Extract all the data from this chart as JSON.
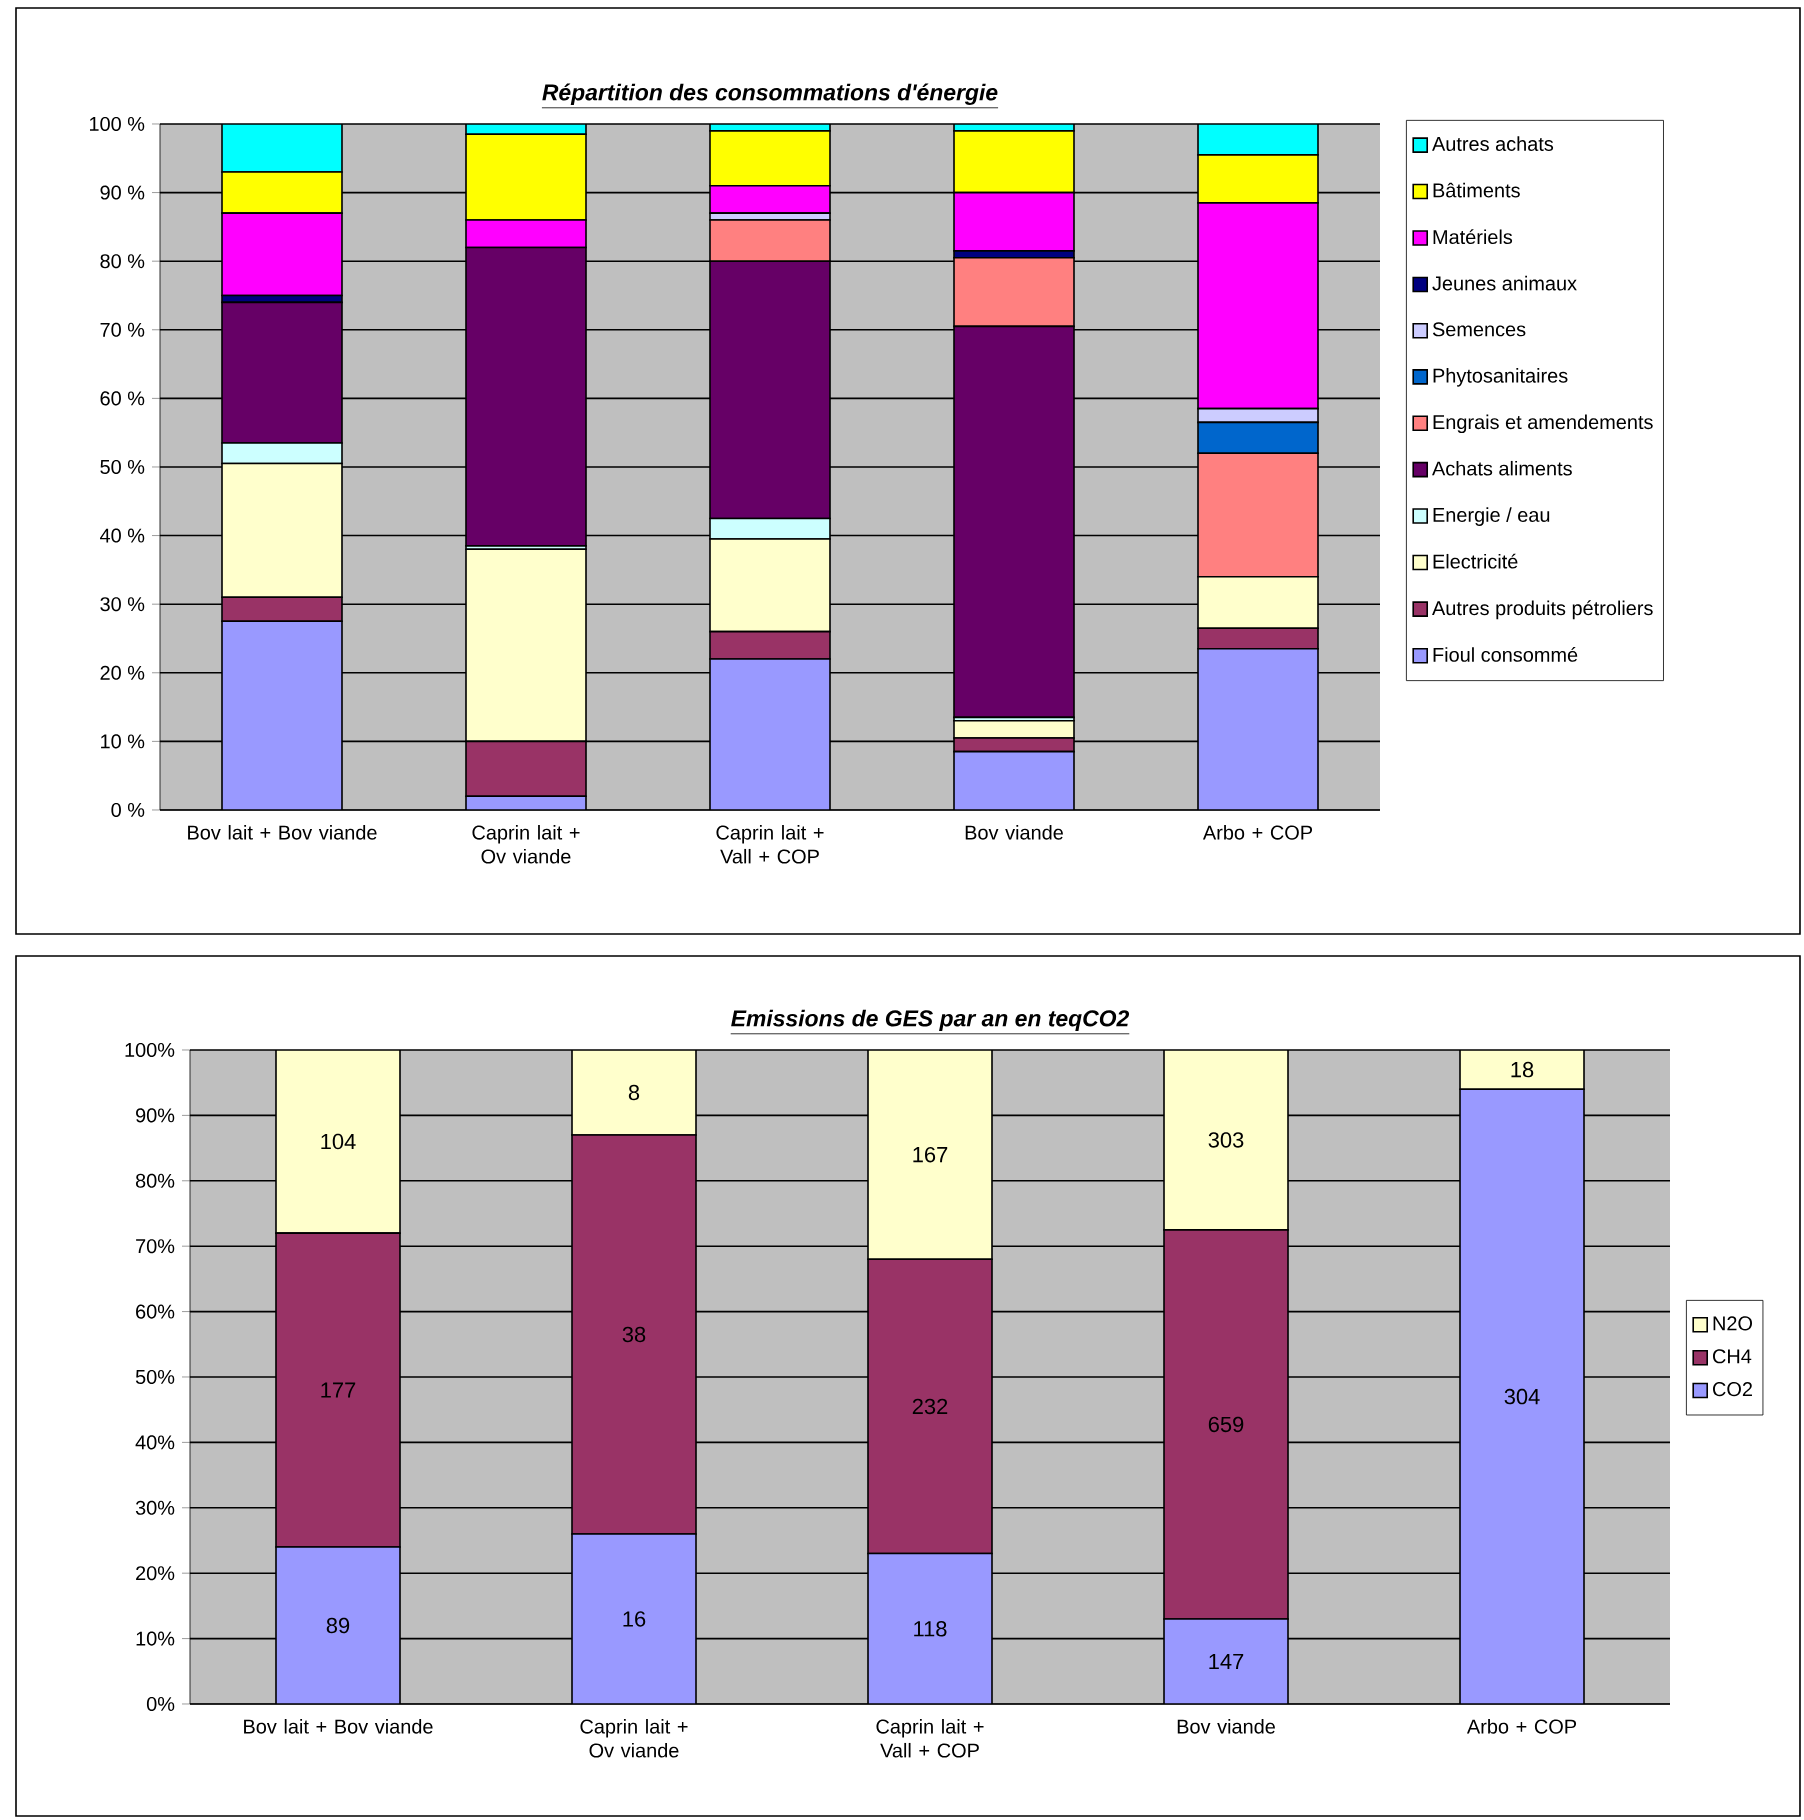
{
  "chart_data": [
    {
      "type": "bar",
      "stacked": true,
      "title": "Répartition des consommations d'énergie",
      "categories": [
        "Bov lait + Bov viande",
        "Caprin lait + Ov viande",
        "Caprin lait + Vall + COP",
        "Bov viande",
        "Arbo + COP"
      ],
      "series": [
        {
          "name": "Fioul consommé",
          "color": "#9999ff",
          "values": [
            27.5,
            2,
            22,
            8.5,
            23.5
          ]
        },
        {
          "name": "Autres produits pétroliers",
          "color": "#993366",
          "values": [
            3.5,
            8,
            4,
            2,
            3
          ]
        },
        {
          "name": "Electricité",
          "color": "#ffffcc",
          "values": [
            19.5,
            28,
            13.5,
            2.5,
            7.5
          ]
        },
        {
          "name": "Energie / eau",
          "color": "#ccffff",
          "values": [
            3,
            0.5,
            3,
            0.5,
            0
          ]
        },
        {
          "name": "Achats aliments",
          "color": "#660066",
          "values": [
            20.5,
            43.5,
            37.5,
            57,
            0
          ]
        },
        {
          "name": "Engrais et amendements",
          "color": "#ff8080",
          "values": [
            0,
            0,
            6,
            10,
            18
          ]
        },
        {
          "name": "Phytosanitaires",
          "color": "#0066cc",
          "values": [
            0,
            0,
            0,
            0,
            4.5
          ]
        },
        {
          "name": "Semences",
          "color": "#ccccff",
          "values": [
            0,
            0,
            1,
            0,
            2
          ]
        },
        {
          "name": "Jeunes animaux",
          "color": "#000080",
          "values": [
            1,
            0,
            0,
            1,
            0
          ]
        },
        {
          "name": "Matériels",
          "color": "#ff00ff",
          "values": [
            12,
            4,
            4,
            8.5,
            30
          ]
        },
        {
          "name": "Bâtiments",
          "color": "#ffff00",
          "values": [
            6,
            12.5,
            8,
            9,
            7
          ]
        },
        {
          "name": "Autres achats",
          "color": "#00ffff",
          "values": [
            7,
            1.5,
            1,
            1,
            4.5
          ]
        }
      ],
      "ylim": [
        0,
        100
      ],
      "yticks": [
        {
          "value": 0,
          "label": "0 %"
        },
        {
          "value": 10,
          "label": "10 %"
        },
        {
          "value": 20,
          "label": "20 %"
        },
        {
          "value": 30,
          "label": "30 %"
        },
        {
          "value": 40,
          "label": "40 %"
        },
        {
          "value": 50,
          "label": "50 %"
        },
        {
          "value": 60,
          "label": "60 %"
        },
        {
          "value": 70,
          "label": "70 %"
        },
        {
          "value": 80,
          "label": "80 %"
        },
        {
          "value": 90,
          "label": "90 %"
        },
        {
          "value": 100,
          "label": "100 %"
        }
      ],
      "grid": "y",
      "legend": "right"
    },
    {
      "type": "bar",
      "stacked": true,
      "title": "Emissions de GES par an en teqCO2",
      "categories": [
        "Bov lait + Bov viande",
        "Caprin lait + Ov viande",
        "Caprin lait + Vall + COP",
        "Bov viande",
        "Arbo + COP"
      ],
      "series": [
        {
          "name": "CO2",
          "color": "#9999ff",
          "values": [
            24,
            26,
            23,
            13,
            94
          ]
        },
        {
          "name": "CH4",
          "color": "#993366",
          "values": [
            48,
            61,
            45,
            59.5,
            0
          ]
        },
        {
          "name": "N2O",
          "color": "#ffffcc",
          "values": [
            28,
            13,
            32,
            27.5,
            6
          ]
        }
      ],
      "annotations": [
        "89",
        "16",
        "118",
        "147",
        "304",
        "177",
        "38",
        "232",
        "659",
        "104",
        "8",
        "167",
        "303",
        "18"
      ],
      "ylim": [
        0,
        100
      ],
      "yticks": [
        {
          "value": 0,
          "label": "0%"
        },
        {
          "value": 10,
          "label": "10%"
        },
        {
          "value": 20,
          "label": "20%"
        },
        {
          "value": 30,
          "label": "30%"
        },
        {
          "value": 40,
          "label": "40%"
        },
        {
          "value": 50,
          "label": "50%"
        },
        {
          "value": 60,
          "label": "60%"
        },
        {
          "value": 70,
          "label": "70%"
        },
        {
          "value": 80,
          "label": "80%"
        },
        {
          "value": 90,
          "label": "90%"
        },
        {
          "value": 100,
          "label": "100%"
        }
      ],
      "grid": "y",
      "legend": "right"
    }
  ]
}
